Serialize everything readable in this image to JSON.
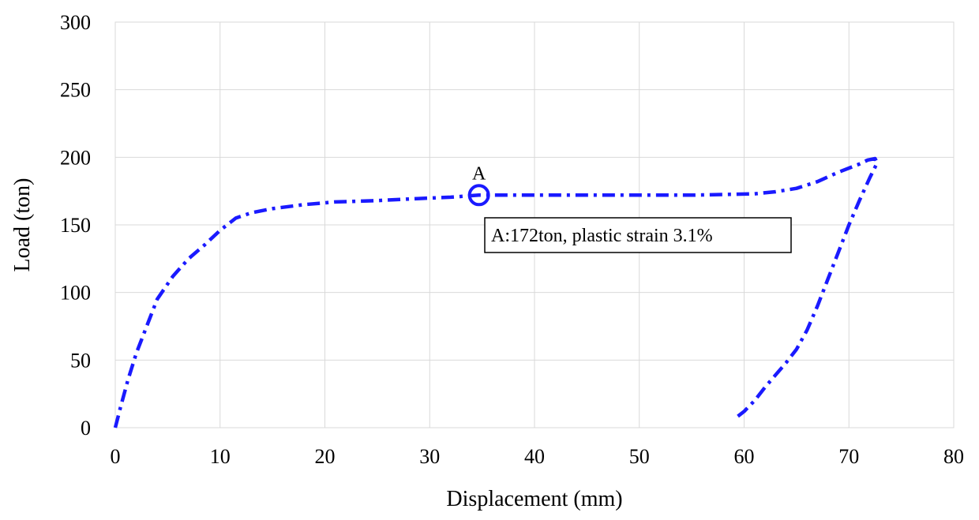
{
  "chart_data": {
    "type": "line",
    "title": "",
    "xlabel": "Displacement (mm)",
    "ylabel": "Load (ton)",
    "xlim": [
      0,
      80
    ],
    "ylim": [
      0,
      300
    ],
    "x_ticks": [
      "0",
      "10",
      "20",
      "30",
      "40",
      "50",
      "60",
      "70",
      "80"
    ],
    "y_ticks": [
      "0",
      "50",
      "100",
      "150",
      "200",
      "250",
      "300"
    ],
    "grid": true,
    "legend": "none",
    "series": [
      {
        "color": "#1a1aff",
        "line_style": "dash-dot",
        "points": [
          [
            0,
            0
          ],
          [
            0.5,
            15
          ],
          [
            1.2,
            35
          ],
          [
            2,
            55
          ],
          [
            3,
            75
          ],
          [
            4,
            95
          ],
          [
            5.5,
            112
          ],
          [
            7,
            125
          ],
          [
            8.5,
            135
          ],
          [
            10,
            146
          ],
          [
            11.5,
            155
          ],
          [
            13,
            159
          ],
          [
            15,
            162
          ],
          [
            18,
            165
          ],
          [
            21,
            167
          ],
          [
            25,
            168
          ],
          [
            29,
            169.5
          ],
          [
            32,
            170.5
          ],
          [
            34.7,
            172
          ],
          [
            40,
            172
          ],
          [
            45,
            172
          ],
          [
            50,
            172
          ],
          [
            55,
            172
          ],
          [
            58,
            172.5
          ],
          [
            61,
            173
          ],
          [
            63,
            174.5
          ],
          [
            65,
            177
          ],
          [
            67,
            182
          ],
          [
            69,
            189
          ],
          [
            71,
            195
          ],
          [
            71.8,
            198
          ],
          [
            72.5,
            199
          ],
          [
            72.7,
            196
          ],
          [
            72,
            185
          ],
          [
            71,
            168
          ],
          [
            70,
            150
          ],
          [
            69,
            130
          ],
          [
            68,
            110
          ],
          [
            67,
            90
          ],
          [
            66,
            72
          ],
          [
            65,
            58
          ],
          [
            64,
            48
          ],
          [
            63,
            39
          ],
          [
            62,
            30
          ],
          [
            61,
            20
          ],
          [
            60,
            12
          ],
          [
            59,
            6
          ]
        ]
      }
    ],
    "annotations": [
      {
        "marker_label": "A",
        "point": [
          34.7,
          172
        ],
        "marker": "circle",
        "box_text": "A:172ton, plastic strain 3.1%"
      }
    ]
  }
}
